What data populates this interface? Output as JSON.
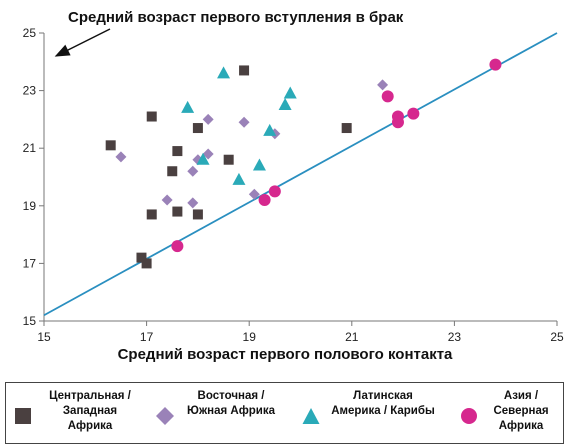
{
  "chart_data": {
    "type": "scatter",
    "title": "",
    "ylabel": "Средний возраст первого вступления в брак",
    "xlabel": "Средний возраст первого полового контакта",
    "xlim": [
      15,
      25
    ],
    "ylim": [
      15,
      25
    ],
    "xticks": [
      "15",
      "17",
      "19",
      "21",
      "23",
      "25"
    ],
    "yticks": [
      "15",
      "17",
      "19",
      "21",
      "23",
      "25"
    ],
    "grid": false,
    "legend_position": "bottom",
    "reference_line": {
      "type": "diagonal",
      "x": [
        15,
        25
      ],
      "y": [
        15.2,
        25.0
      ],
      "color": "#2a8fc0"
    },
    "series": [
      {
        "name": "Центральная /\nЗападная\nАфрика",
        "marker": "square",
        "color": "#4a4040",
        "points": [
          [
            16.3,
            21.1
          ],
          [
            17.1,
            22.1
          ],
          [
            18.9,
            23.7
          ],
          [
            18.0,
            21.7
          ],
          [
            17.6,
            20.9
          ],
          [
            17.5,
            20.2
          ],
          [
            18.6,
            20.6
          ],
          [
            17.1,
            18.7
          ],
          [
            17.6,
            18.8
          ],
          [
            18.0,
            18.7
          ],
          [
            16.9,
            17.2
          ],
          [
            17.0,
            17.0
          ],
          [
            20.9,
            21.7
          ]
        ]
      },
      {
        "name": "Восточная /\nЮжная Африка",
        "marker": "diamond",
        "color": "#9a82b8",
        "points": [
          [
            16.5,
            20.7
          ],
          [
            17.4,
            19.2
          ],
          [
            17.9,
            19.1
          ],
          [
            17.9,
            20.2
          ],
          [
            18.0,
            20.6
          ],
          [
            18.2,
            20.8
          ],
          [
            18.2,
            22.0
          ],
          [
            18.9,
            21.9
          ],
          [
            19.1,
            19.4
          ],
          [
            19.5,
            21.5
          ],
          [
            21.6,
            23.2
          ]
        ]
      },
      {
        "name": "Латинская\nАмерика / Карибы",
        "marker": "triangle",
        "color": "#2aaab8",
        "points": [
          [
            18.5,
            23.6
          ],
          [
            17.8,
            22.4
          ],
          [
            18.1,
            20.6
          ],
          [
            18.8,
            19.9
          ],
          [
            19.2,
            20.4
          ],
          [
            19.4,
            21.6
          ],
          [
            19.7,
            22.5
          ],
          [
            19.8,
            22.9
          ]
        ]
      },
      {
        "name": "Азия /\nСеверная\nАфрика",
        "marker": "circle",
        "color": "#d6288e",
        "points": [
          [
            17.6,
            17.6
          ],
          [
            19.3,
            19.2
          ],
          [
            19.5,
            19.5
          ],
          [
            21.7,
            22.8
          ],
          [
            21.9,
            21.9
          ],
          [
            21.9,
            22.1
          ],
          [
            22.2,
            22.2
          ],
          [
            23.8,
            23.9
          ]
        ]
      }
    ]
  }
}
